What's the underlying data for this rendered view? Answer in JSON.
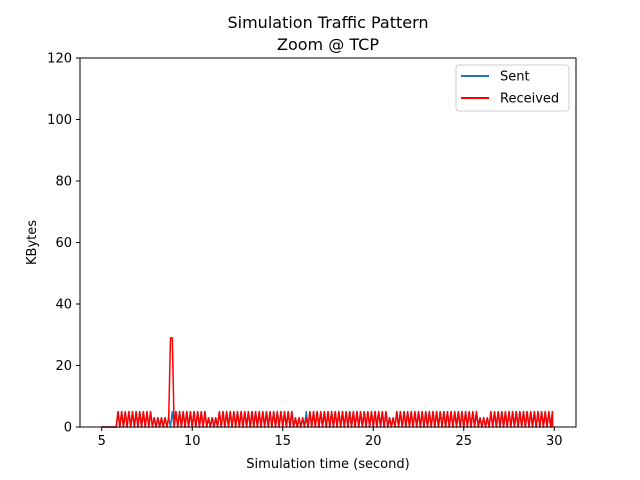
{
  "chart_data": {
    "type": "line",
    "title": "Simulation Traffic Pattern",
    "subtitle": "Zoom @ TCP",
    "xlabel": "Simulation time (second)",
    "ylabel": "KBytes",
    "xlim": [
      3.8,
      31.2
    ],
    "ylim": [
      0,
      120
    ],
    "xticks": [
      5,
      10,
      15,
      20,
      25,
      30
    ],
    "yticks": [
      0,
      20,
      40,
      60,
      80,
      100,
      120
    ],
    "grid": false,
    "legend_position": "top-right",
    "series": [
      {
        "name": "Sent",
        "color": "#1f77b4",
        "pattern": "alternating",
        "x_start": 5.0,
        "x_end": 29.9,
        "active_from": 5.9,
        "step": 0.1,
        "high": 5,
        "low": 0,
        "gaps": [
          [
            7.8,
            8.8
          ],
          [
            10.8,
            11.3
          ],
          [
            15.7,
            16.1
          ],
          [
            20.9,
            21.2
          ],
          [
            25.9,
            26.3
          ]
        ]
      },
      {
        "name": "Received",
        "color": "#ff0000",
        "pattern": "alternating",
        "x_start": 5.0,
        "x_end": 29.9,
        "active_from": 5.9,
        "step": 0.1,
        "high": 5,
        "low": 0,
        "gaps": [
          [
            7.8,
            8.7
          ],
          [
            10.8,
            11.3
          ],
          [
            15.7,
            16.3
          ],
          [
            20.9,
            21.2
          ],
          [
            25.9,
            26.4
          ]
        ],
        "peaks": [
          {
            "x": 8.85,
            "y": 29
          }
        ]
      }
    ]
  }
}
